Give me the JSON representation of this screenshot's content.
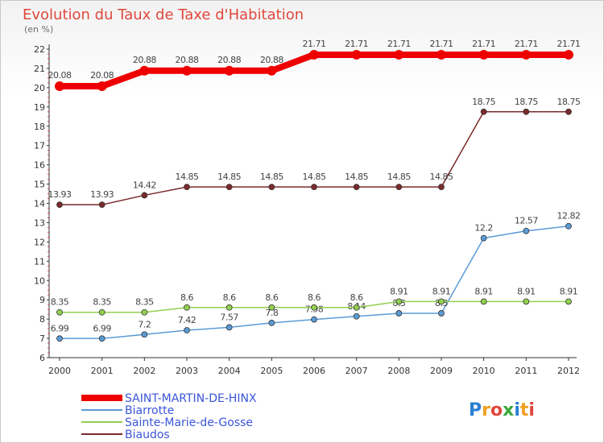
{
  "chart_data": {
    "type": "line",
    "title": "Evolution du Taux de Taxe d'Habitation",
    "subtitle": "(en %)",
    "x": [
      "2000",
      "2001",
      "2002",
      "2003",
      "2004",
      "2005",
      "2006",
      "2007",
      "2008",
      "2009",
      "2010",
      "2011",
      "2012"
    ],
    "ylim": [
      6,
      22
    ],
    "yticks": [
      6,
      7,
      8,
      9,
      10,
      11,
      12,
      13,
      14,
      15,
      16,
      17,
      18,
      19,
      20,
      21,
      22
    ],
    "grid": false,
    "legend_position": "bottom-left",
    "series": [
      {
        "name": "SAINT-MARTIN-DE-HINX",
        "color": "#ee0000",
        "values": [
          20.08,
          20.08,
          20.88,
          20.88,
          20.88,
          20.88,
          21.71,
          21.71,
          21.71,
          21.71,
          21.71,
          21.71,
          21.71
        ],
        "labels": [
          "20.08",
          "20.08",
          "20.88",
          "20.88",
          "20.88",
          "20.88",
          "21.71",
          "21.71",
          "21.71",
          "21.71",
          "21.71",
          "21.71",
          "21.71"
        ]
      },
      {
        "name": "Biarrotte",
        "color": "#5b9bd5",
        "values": [
          6.99,
          6.99,
          7.2,
          7.42,
          7.57,
          7.8,
          7.98,
          8.14,
          8.3,
          8.3,
          12.2,
          12.57,
          12.82
        ],
        "labels": [
          "6.99",
          "6.99",
          "7.2",
          "7.42",
          "7.57",
          "7.8",
          "7.98",
          "8.14",
          "8.3",
          "8.3",
          "12.2",
          "12.57",
          "12.82"
        ]
      },
      {
        "name": "Sainte-Marie-de-Gosse",
        "color": "#92d050",
        "values": [
          8.35,
          8.35,
          8.35,
          8.6,
          8.6,
          8.6,
          8.6,
          8.6,
          8.91,
          8.91,
          8.91,
          8.91,
          8.91
        ],
        "labels": [
          "8.35",
          "8.35",
          "8.35",
          "8.6",
          "8.6",
          "8.6",
          "8.6",
          "8.6",
          "8.91",
          "8.91",
          "8.91",
          "8.91",
          "8.91"
        ]
      },
      {
        "name": "Biaudos",
        "color": "#7b2a2a",
        "values": [
          13.93,
          13.93,
          14.42,
          14.85,
          14.85,
          14.85,
          14.85,
          14.85,
          14.85,
          14.85,
          18.75,
          18.75,
          18.75
        ],
        "labels": [
          "13.93",
          "13.93",
          "14.42",
          "14.85",
          "14.85",
          "14.85",
          "14.85",
          "14.85",
          "14.85",
          "14.85",
          "18.75",
          "18.75",
          "18.75"
        ]
      }
    ]
  },
  "brand": {
    "text": "Proxiti",
    "letter_colors": [
      "#2a7fd1",
      "#f0a020",
      "#e0473c",
      "#3aa83a",
      "#2a7fd1",
      "#f0a020",
      "#e0473c"
    ]
  }
}
